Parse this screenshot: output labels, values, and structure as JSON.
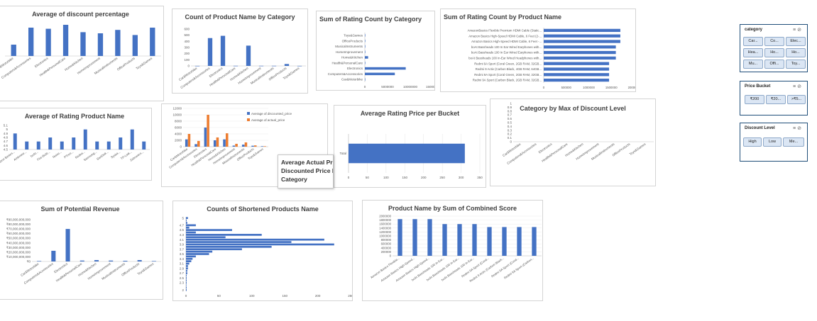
{
  "colors": {
    "blue": "#4472c4",
    "orange": "#ed7d31",
    "slicer_border": "#1f4e79",
    "slicer_button": "#dbe6f4"
  },
  "tooltip": {
    "lines": [
      "Average Actual Price vs",
      "Discounted Price by",
      "Category"
    ]
  },
  "slicers": [
    {
      "header": "category",
      "buttons": [
        "Car...",
        "Co...",
        "Elec...",
        "Hea...",
        "Ho...",
        "Ho...",
        "Mu...",
        "Offi...",
        "Toy..."
      ]
    },
    {
      "header": "Price Bucket",
      "buttons": [
        "₹200",
        "₹20...",
        ">₹5..."
      ]
    },
    {
      "header": "Discount Level",
      "buttons": [
        "High",
        "Low",
        "Me..."
      ]
    }
  ],
  "chart_data": [
    {
      "id": "discount",
      "type": "bar",
      "title": "Average of discount percentage",
      "categories": [
        "Car&Motorbike",
        "Computers&Accessories",
        "Electronics",
        "Health&PersonalCare",
        "Home&Kitchen",
        "HomeImprovement",
        "MusicalInstruments",
        "OfficeProducts",
        "Toys&Games"
      ],
      "values": [
        0.2,
        0.5,
        0.48,
        0.55,
        0.42,
        0.4,
        0.46,
        0.37,
        0.5
      ],
      "ylim": [
        0,
        0.6
      ]
    },
    {
      "id": "count_cat",
      "type": "bar",
      "title": "Count of Product Name by Category",
      "categories": [
        "Car&Motorbike",
        "Computers&Accessories",
        "Electronics",
        "Health&PersonalCare",
        "Home&Kitchen",
        "HomeImprovement",
        "MusicalInstruments",
        "OfficeProducts",
        "Toys&Games"
      ],
      "values": [
        1,
        453,
        490,
        2,
        330,
        2,
        2,
        31,
        1
      ],
      "ylim": [
        0,
        600
      ],
      "yticks": [
        "0",
        "100",
        "200",
        "300",
        "400",
        "500",
        "600"
      ]
    },
    {
      "id": "rating_cat",
      "type": "bar",
      "orientation": "horizontal",
      "title": "Sum of Rating Count by Category",
      "categories": [
        "Toys&Games",
        "OfficeProducts",
        "MusicalInstruments",
        "HomeImprovement",
        "Home&Kitchen",
        "Health&PersonalCare",
        "Electronics",
        "Computers&Accessories",
        "Car&Motorbike"
      ],
      "values": [
        15000,
        150000,
        90000,
        8000,
        1200000,
        10000,
        15000000,
        11000000,
        1000
      ],
      "xlim": [
        0,
        25000000
      ],
      "xticks": [
        "0",
        "5000000",
        "10000000",
        "15000000"
      ]
    },
    {
      "id": "rating_prod",
      "type": "bar",
      "orientation": "horizontal",
      "title": "Sum of Rating Count by Product Name",
      "categories": [
        "AmazonBasics Flexible Premium HDMI Cable (Static...",
        "Amazon Basics High-Speed HDMI Cable, 6 Feet (2-...",
        "Amazon Basics High-Speed HDMI Cable, 6 Feet -...",
        "boAt Bassheads 100 In Ear Wired Earphones with...",
        "boAt Bassheads 100 In Ear Wired Earphones with...",
        "boAt Bassheads 100 in-Ear Wired Headphones with...",
        "Redmi 9A Sport (Coral Green, 2GB RAM, 32GB...",
        "Redmi 9 Activ (Carbon Black, 4GB RAM, 64GB...",
        "Redmi 9A Sport (Coral Green, 2GB RAM, 32GB...",
        "Redmi 9A Sport (Carbon Black, 2GB RAM, 32GB..."
      ],
      "values": [
        1700000,
        1700000,
        1700000,
        1600000,
        1600000,
        1600000,
        1450000,
        1450000,
        1450000,
        1450000
      ],
      "xlim": [
        0,
        2000000
      ],
      "xticks": [
        "0",
        "500000",
        "1000000",
        "1500000",
        "2000000"
      ]
    },
    {
      "id": "avg_rating",
      "type": "bar",
      "title": "Average of Rating Product Name",
      "categories": [
        "Amazon Basics...",
        "Ambrane...",
        "boAt...",
        "Fire-Boltt...",
        "Noise...",
        "PTron...",
        "Redmi...",
        "Samsung...",
        "SanDisk...",
        "Syska...",
        "TP-Link...",
        "Zebronics..."
      ],
      "values": [
        4.9,
        4.7,
        4.7,
        4.8,
        4.7,
        4.8,
        5.0,
        4.7,
        4.7,
        4.8,
        5.0,
        4.7
      ],
      "ylim": [
        4.5,
        5.1
      ],
      "yticks": [
        "4.5",
        "4.6",
        "4.7",
        "4.8",
        "4.9",
        "5",
        "5.1"
      ]
    },
    {
      "id": "price_cat",
      "type": "bar",
      "title": "Average Actual Price vs Discounted Price by Category",
      "categories": [
        "Car&Motorbike",
        "Computers&Accessories",
        "Electronics",
        "Health&PersonalCare",
        "Home&Kitchen",
        "HomeImprovement",
        "MusicalInstruments",
        "OfficeProducts",
        "Toys&Games"
      ],
      "series": [
        {
          "name": "Average of discounted_price",
          "values": [
            2300,
            800,
            6000,
            2000,
            2300,
            340,
            640,
            300,
            150
          ]
        },
        {
          "name": "Average of actual_price",
          "values": [
            4000,
            1800,
            10000,
            2900,
            4200,
            900,
            1350,
            400,
            150
          ]
        }
      ],
      "ylim": [
        0,
        12000
      ],
      "yticks": [
        "0",
        "2000",
        "4000",
        "6000",
        "8000",
        "10000",
        "12000"
      ]
    },
    {
      "id": "bucket",
      "type": "bar",
      "orientation": "horizontal",
      "title": "Average Rating Price per Bucket",
      "categories": [
        "Total"
      ],
      "values": [
        310
      ],
      "xlim": [
        0,
        350
      ],
      "xticks": [
        "0",
        "50",
        "100",
        "150",
        "200",
        "250",
        "300",
        "350"
      ]
    },
    {
      "id": "max_discount",
      "type": "bar",
      "title": "Category by Max of Discount Level",
      "categories": [
        "Car&Motorbike",
        "Computers&Accessories",
        "Electronics",
        "Health&PersonalCare",
        "Home&Kitchen",
        "HomeImprovement",
        "MusicalInstruments",
        "OfficeProducts",
        "Toys&Games"
      ],
      "values": [
        0,
        0,
        0,
        0,
        0,
        0,
        0,
        0,
        0
      ],
      "ylim": [
        0,
        1
      ],
      "yticks": [
        "0",
        "0.1",
        "0.2",
        "0.3",
        "0.4",
        "0.5",
        "0.6",
        "0.7",
        "0.8",
        "0.9",
        "1"
      ]
    },
    {
      "id": "revenue",
      "type": "bar",
      "title": "Sum of Potential Revenue",
      "categories": [
        "Car&Motorbike",
        "Computers&Accessories",
        "Electronics",
        "Health&PersonalCare",
        "Home&Kitchen",
        "HomeImprovement",
        "MusicalInstruments",
        "OfficeProducts",
        "Toys&Games"
      ],
      "values": [
        100000000,
        2300000000,
        7000000000,
        200000000,
        300000000,
        200000000,
        150000000,
        300000000,
        100000000
      ],
      "ylim": [
        0,
        9000000000
      ],
      "yticks": [
        "₹0",
        "₹10,000,000,000",
        "₹20,000,000,000",
        "₹30,000,000,000",
        "₹40,000,000,000",
        "₹50,000,000,000",
        "₹60,000,000,000",
        "₹70,000,000,000",
        "₹80,000,000,000",
        "₹90,000,000,000"
      ]
    },
    {
      "id": "shortened",
      "type": "bar",
      "orientation": "horizontal",
      "title": "Counts of Shortened Products Name",
      "categories": [
        "5",
        "4.9",
        "4.8",
        "4.7",
        "4.6",
        "4.5",
        "4.4",
        "4.3",
        "4.2",
        "4.1",
        "4",
        "3.9",
        "3.8",
        "3.7",
        "3.6",
        "3.5",
        "3.4",
        "3.3",
        "3.2",
        "3.1",
        "3",
        "2.9",
        "2.8",
        "2.7",
        "2.6",
        "2.5",
        "2.4",
        "2.3",
        "2.2",
        "2.1",
        "2"
      ],
      "values": [
        3,
        1,
        2,
        15,
        5,
        70,
        15,
        115,
        60,
        210,
        160,
        225,
        130,
        85,
        40,
        35,
        15,
        10,
        8,
        5,
        3,
        3,
        2,
        2,
        1,
        1,
        1,
        1,
        0,
        1,
        1
      ],
      "yticks": [
        "5",
        "4.7",
        "4.5",
        "4.3",
        "4.1",
        "3.9",
        "3.7",
        "3.5",
        "3.3",
        "3.1",
        "2.9",
        "2.7",
        "2.5",
        "2.3",
        "2"
      ],
      "xlim": [
        0,
        250
      ],
      "xticks": [
        "0",
        "50",
        "100",
        "150",
        "200",
        "250"
      ]
    },
    {
      "id": "combined",
      "type": "bar",
      "title": "Product Name by Sum of Combined Score",
      "categories": [
        "Amazon Basics Flexible...",
        "Amazon Basics High-Speed...",
        "Amazon Basics High-Speed...",
        "boAt Bassheads 100 in Ear...",
        "boAt Bassheads 100 in Ear...",
        "boAt Bassheads 100 in Ear...",
        "Redmi 9A Sport (Coral...",
        "Redmi 9 Activ (Carbon Black...",
        "Redmi 9A Sport (Coral...",
        "Redmi 9A Sport (Carbon..."
      ],
      "values": [
        1850000,
        1850000,
        1850000,
        1600000,
        1600000,
        1600000,
        1450000,
        1450000,
        1450000,
        1450000
      ],
      "ylim": [
        0,
        2000000
      ],
      "yticks": [
        "0",
        "200000",
        "400000",
        "600000",
        "800000",
        "1000000",
        "1200000",
        "1400000",
        "1600000",
        "1800000",
        "2000000"
      ]
    }
  ]
}
